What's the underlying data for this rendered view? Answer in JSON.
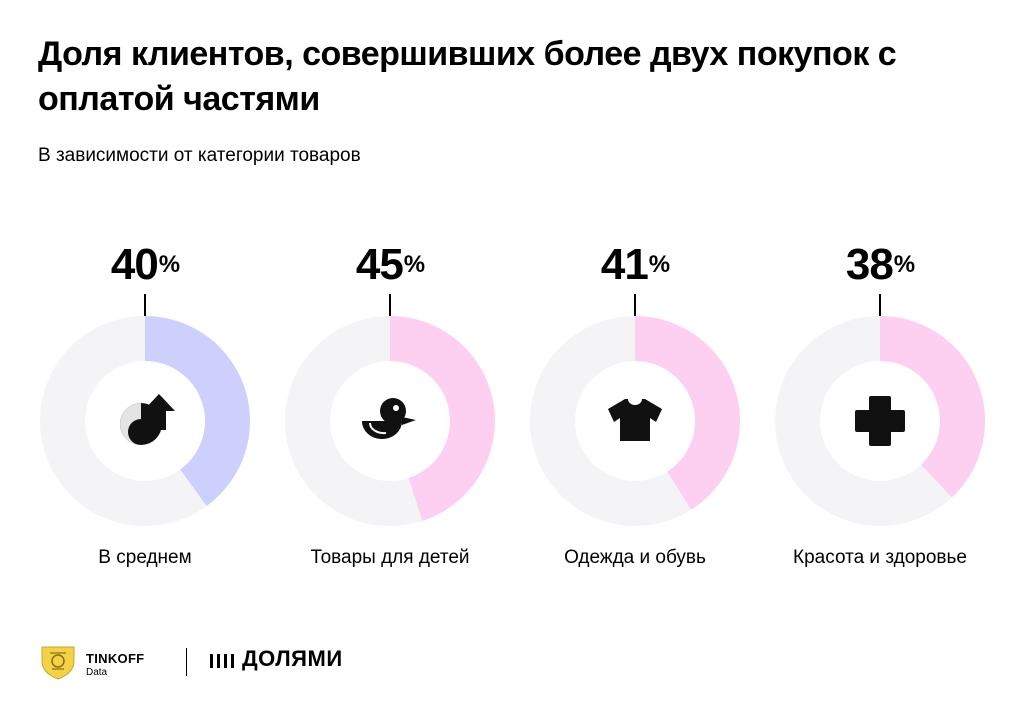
{
  "title": "Доля клиентов, совершивших более двух покупок с оплатой частями",
  "subtitle": "В зависимости от категории товаров",
  "chart_data": {
    "type": "pie",
    "unit": "%",
    "categories": [
      "В среднем",
      "Товары для детей",
      "Одежда и обувь",
      "Красота и здоровье"
    ],
    "values": [
      40,
      45,
      41,
      38
    ],
    "colors": [
      "#cdcffc",
      "#fdcff0",
      "#fdcff0",
      "#fdcff0"
    ],
    "track_color": "#f4f4f6",
    "icons": [
      "arrow-swirl-icon",
      "duck-toy-icon",
      "tshirt-icon",
      "medical-cross-icon"
    ],
    "items": [
      {
        "value_text": "40",
        "label": "В среднем"
      },
      {
        "value_text": "45",
        "label": "Товары для детей"
      },
      {
        "value_text": "41",
        "label": "Одежда и обувь"
      },
      {
        "value_text": "38",
        "label": "Красота и здоровье"
      }
    ]
  },
  "percent_sign": "%",
  "footer": {
    "brand_name": "TINKOFF",
    "brand_sub": "Data",
    "partner": "ДОЛЯМИ"
  }
}
